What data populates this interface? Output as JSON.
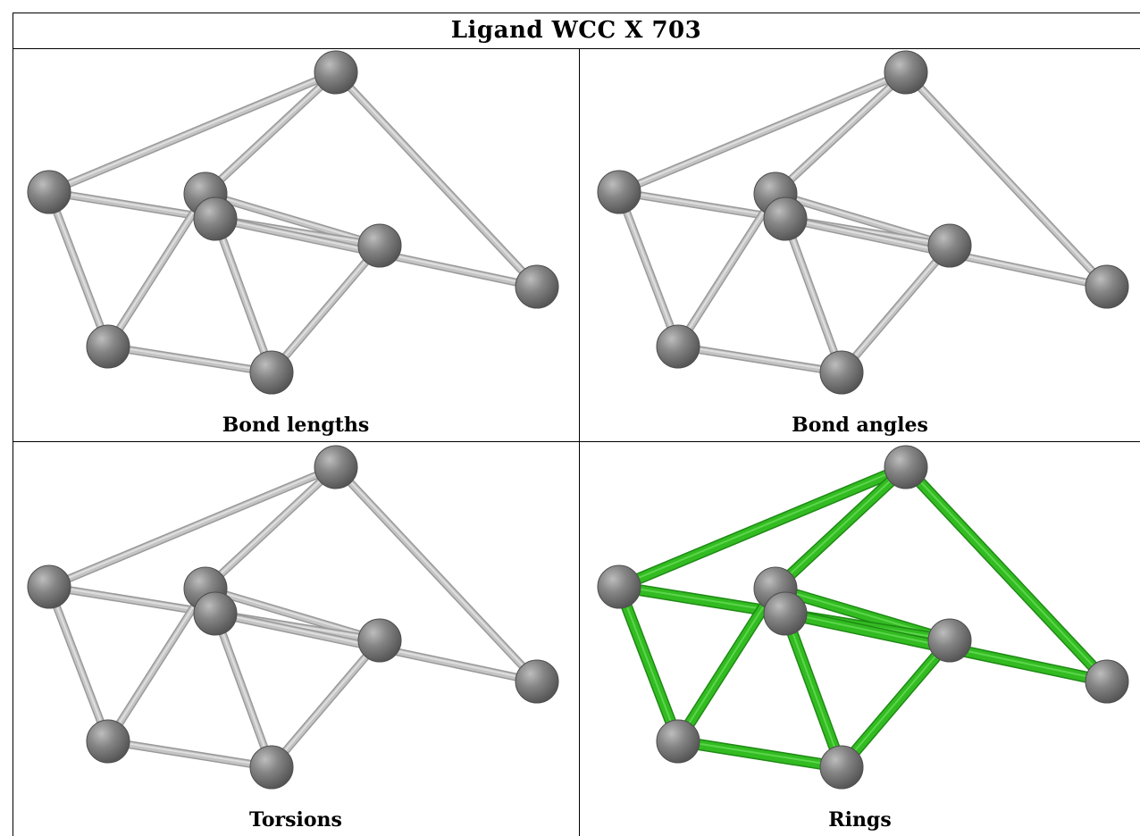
{
  "title": "Ligand WCC X 703",
  "panels": [
    {
      "caption": "Bond lengths",
      "highlight": false
    },
    {
      "caption": "Bond angles",
      "highlight": false
    },
    {
      "caption": "Torsions",
      "highlight": false
    },
    {
      "caption": "Rings",
      "highlight": true
    }
  ],
  "colors": {
    "atom": "#7a7a7a",
    "bond_plain": "#c4c4c4",
    "bond_ring": "#33bb22"
  }
}
